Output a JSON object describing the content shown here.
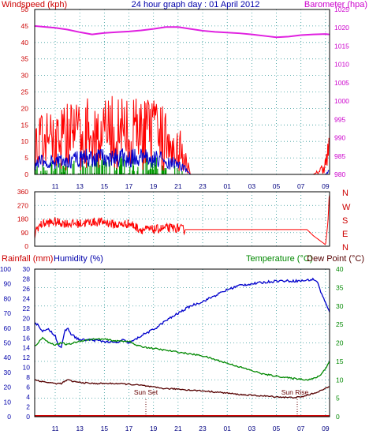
{
  "header": {
    "left": "Windspeed (kph)",
    "title": "24 hour graph day : 01 April 2012",
    "right": "Barometer (hpa)"
  },
  "wind_dir_letters": [
    "N",
    "W",
    "S",
    "E",
    "N"
  ],
  "lower_header": {
    "rainfall": "Rainfall (mm)",
    "humidity": "Humidity (%)",
    "temperature": "Temperature (°C)",
    "dewpoint": "Dew Point (°C)"
  },
  "annotations": {
    "sunset": "Sun Set",
    "sunrise": "Sun Rise"
  },
  "colors": {
    "wind": "#ff0000",
    "wind_avg": "#0000cc",
    "wind_low": "#009900",
    "barometer": "#e020e0",
    "humidity": "#0000cc",
    "temperature": "#008800",
    "dewpoint": "#550000",
    "rainfall": "#cc0000",
    "grid": "#339999",
    "frame": "#000000"
  },
  "chart_data": [
    {
      "type": "line",
      "title": "24 hour graph day : 01 April 2012",
      "ylabel": "Windspeed (kph)",
      "y2label": "Barometer (hpa)",
      "x_ticks": [
        "11",
        "13",
        "15",
        "17",
        "19",
        "21",
        "23",
        "01",
        "03",
        "05",
        "07",
        "09"
      ],
      "ylim": [
        0,
        50
      ],
      "y_ticks": [
        0,
        5,
        10,
        15,
        20,
        25,
        30,
        35,
        40,
        45,
        50
      ],
      "y2lim": [
        980,
        1025
      ],
      "y2_ticks": [
        980,
        985,
        990,
        995,
        1000,
        1005,
        1010,
        1015,
        1020,
        1025
      ],
      "grid": true,
      "series": [
        {
          "axis": "y2",
          "x": [
            9.3,
            10,
            11,
            12,
            13,
            14,
            15,
            16,
            17,
            18,
            19,
            20,
            21,
            22,
            23,
            24,
            25,
            26,
            27,
            28,
            29,
            30,
            31,
            32,
            33,
            33.3
          ],
          "values": [
            1020.5,
            1020.3,
            1020,
            1019.5,
            1018.8,
            1018.2,
            1018.6,
            1018.8,
            1019,
            1019.3,
            1019.7,
            1020.2,
            1020.2,
            1019.7,
            1019.2,
            1018.9,
            1018.7,
            1018.5,
            1018.2,
            1017.8,
            1017.4,
            1017.6,
            1018,
            1018.2,
            1018.3,
            1018.2
          ]
        },
        {
          "x": [
            9.3,
            10,
            11,
            12,
            13,
            14,
            15,
            16,
            17,
            18,
            19,
            20,
            21,
            21.5,
            22,
            23,
            24,
            25,
            26,
            27,
            28,
            29,
            30,
            31,
            32,
            32.5,
            33,
            33.3
          ],
          "values": [
            9,
            10,
            11,
            12,
            12,
            13,
            12,
            13,
            12,
            13,
            12,
            11,
            9,
            6,
            0,
            0,
            0,
            0,
            0,
            0,
            0,
            0,
            0,
            0,
            0,
            1,
            3,
            7
          ]
        },
        {
          "x": [
            9.3,
            10,
            11,
            12,
            13,
            14,
            15,
            16,
            17,
            18,
            19,
            20,
            21,
            21.5,
            22,
            23,
            24,
            25,
            26,
            27,
            28,
            29,
            30,
            31,
            32,
            33,
            33.3
          ],
          "values": [
            3,
            4,
            4,
            4,
            5,
            5,
            5,
            5,
            5,
            5,
            5,
            4,
            3,
            2,
            0,
            0,
            0,
            0,
            0,
            0,
            0,
            0,
            0,
            0,
            0,
            0,
            1
          ]
        }
      ]
    },
    {
      "type": "line",
      "ylim": [
        0,
        360
      ],
      "y_ticks": [
        0,
        90,
        180,
        270,
        360
      ],
      "x_ticks": [
        "11",
        "13",
        "15",
        "17",
        "19",
        "21",
        "23",
        "01",
        "03",
        "05",
        "07",
        "09"
      ],
      "grid": true,
      "series": [
        {
          "x": [
            9.3,
            9.5,
            10,
            11,
            12,
            13,
            14,
            15,
            16,
            17,
            18,
            19,
            20,
            21,
            21.5,
            22,
            24,
            26,
            28,
            30,
            31,
            31.5,
            32,
            32.5,
            33,
            33.2,
            33.3
          ],
          "values": [
            60,
            120,
            150,
            160,
            150,
            150,
            160,
            160,
            140,
            150,
            110,
            110,
            120,
            120,
            110,
            110,
            110,
            110,
            110,
            110,
            110,
            110,
            70,
            40,
            10,
            160,
            340
          ]
        }
      ]
    },
    {
      "type": "line",
      "ylabel": "Rainfall (mm)",
      "y2label": "Temperature (°C)",
      "ylim": [
        0,
        100
      ],
      "y_ticks": [
        0,
        10,
        20,
        30,
        40,
        50,
        60,
        70,
        80,
        90,
        100
      ],
      "humidity_ticks": [
        0,
        2,
        4,
        6,
        8,
        10,
        12,
        14,
        16,
        18,
        20,
        22,
        24,
        26,
        28,
        30
      ],
      "y2lim": [
        0,
        40
      ],
      "y2_ticks": [
        0,
        5,
        10,
        15,
        20,
        25,
        30,
        35,
        40
      ],
      "x_ticks": [
        "11",
        "13",
        "15",
        "17",
        "19",
        "21",
        "23",
        "01",
        "03",
        "05",
        "07",
        "09"
      ],
      "grid": true,
      "series": [
        {
          "x": [
            9.3,
            9.6,
            10,
            10.5,
            11,
            11.3,
            11.5,
            11.8,
            12,
            12.3,
            12.6,
            13,
            14,
            15,
            16,
            16.5,
            17,
            17.5,
            18,
            18.5,
            19,
            20,
            21,
            22,
            23,
            24,
            25,
            26,
            27,
            28,
            29,
            30,
            31,
            32,
            32.3,
            32.6,
            33,
            33.3
          ],
          "values": [
            64,
            62,
            58,
            59,
            55,
            48,
            47,
            58,
            60,
            56,
            54,
            52,
            52,
            51,
            50,
            52,
            50,
            52,
            55,
            57,
            59,
            65,
            70,
            75,
            78,
            82,
            86,
            89,
            90,
            91,
            92,
            92,
            92,
            93,
            92,
            85,
            77,
            71
          ]
        },
        {
          "x": [
            9.3,
            9.6,
            10,
            10.5,
            11,
            11.5,
            12,
            13,
            14,
            15,
            16,
            17,
            17.5,
            18,
            19,
            20,
            21,
            22,
            23,
            24,
            25,
            26,
            27,
            28,
            29,
            30,
            31,
            31.5,
            32,
            32.5,
            33,
            33.3
          ],
          "values": [
            19,
            20,
            21.5,
            20,
            19.5,
            20,
            19.5,
            20.5,
            21,
            21,
            20.5,
            20.5,
            19.5,
            19,
            18.5,
            18,
            17.5,
            17,
            16.5,
            15.5,
            14.5,
            13.5,
            12.5,
            11.5,
            11,
            10.5,
            10.2,
            10,
            10.3,
            11,
            13,
            15
          ]
        },
        {
          "x": [
            9.3,
            10,
            11,
            11.5,
            12,
            12.5,
            13,
            14,
            15,
            16,
            17,
            18,
            19,
            20,
            21,
            22,
            23,
            24,
            25,
            26,
            27,
            28,
            29,
            30,
            31,
            31.5,
            32,
            32.5,
            33,
            33.3
          ],
          "values": [
            10,
            9.5,
            9,
            9,
            10,
            9.5,
            9.3,
            9,
            9,
            9,
            8.8,
            8.5,
            8,
            7.6,
            7.5,
            7.2,
            7,
            6.7,
            6.4,
            6,
            5.8,
            5.6,
            5.4,
            5.2,
            5.3,
            5.8,
            6.3,
            6.9,
            7.6,
            8.2
          ]
        },
        {
          "x": [
            9.3,
            33.3
          ],
          "values": [
            0,
            0
          ]
        }
      ]
    }
  ]
}
